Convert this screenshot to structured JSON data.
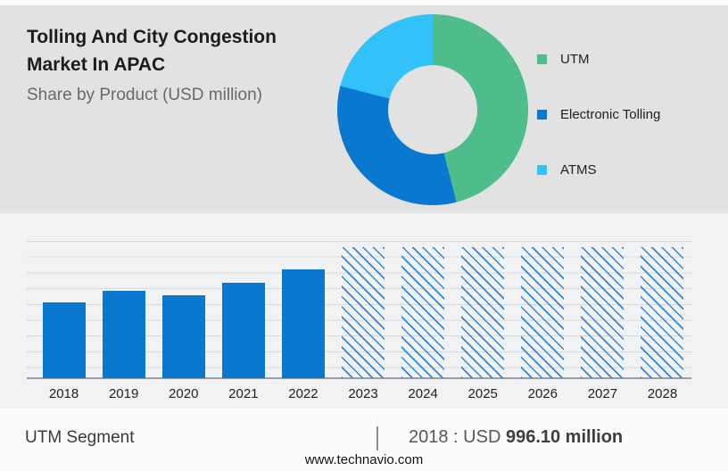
{
  "header": {
    "title_line1": "Tolling And City Congestion",
    "title_line2": "Market In APAC",
    "subtitle": "Share by Product (USD million)"
  },
  "chart_data": [
    {
      "type": "pie",
      "donut": true,
      "title": "Share by Product (USD million)",
      "labels": [
        "UTM",
        "Electronic Tolling",
        "ATMS"
      ],
      "values_pct_est": [
        46,
        33,
        21
      ],
      "colors": [
        "#4fbc8b",
        "#0a78d1",
        "#33c1f9"
      ],
      "legend_position": "right",
      "hole_color": "#e2e2e3"
    },
    {
      "type": "bar",
      "categories": [
        "2018",
        "2019",
        "2020",
        "2021",
        "2022",
        "2023",
        "2024",
        "2025",
        "2026",
        "2027",
        "2028"
      ],
      "series": [
        {
          "name": "UTM segment market size (USD million, est. from bar heights; 2018 value labeled)",
          "values": [
            996.1,
            1156,
            1097,
            1256,
            1440,
            1736,
            1736,
            1736,
            1736,
            1736,
            1736
          ]
        }
      ],
      "forecast_from_index": 5,
      "note": "2023-2028 drawn as full-height diagonal-hatched forecast placeholder bars",
      "ylim": [
        0,
        1815
      ],
      "grid": "horizontal",
      "bar_color": "#0a78d1",
      "forecast_hatch_color": "#2f86d8"
    }
  ],
  "footer": {
    "segment_label": "UTM Segment",
    "separator": "|",
    "value_prefix": "2018 : USD ",
    "value_bold": "996.10 million",
    "website": "www.technavio.com"
  }
}
